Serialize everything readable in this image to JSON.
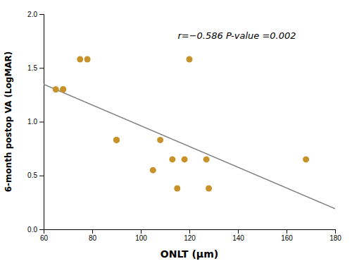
{
  "chart_data": {
    "type": "scatter",
    "xlabel": "ONLT (μm)",
    "ylabel": "6-month postop VA (LogMAR)",
    "annotation": "r=−0.586  P-value =0.002",
    "series": [
      {
        "type": "scatter",
        "color": "#C8922A",
        "x": [
          65,
          68,
          68,
          75,
          78,
          90,
          90,
          105,
          108,
          113,
          115,
          118,
          120,
          127,
          128,
          168
        ],
        "values": [
          1.3,
          1.3,
          1.3,
          1.58,
          1.58,
          0.83,
          0.83,
          0.55,
          0.83,
          0.65,
          0.38,
          0.65,
          1.58,
          0.65,
          0.38,
          0.65
        ]
      },
      {
        "type": "line",
        "color": "#808080",
        "x": [
          60,
          180
        ],
        "values": [
          1.3472,
          0.1906
        ]
      }
    ],
    "xlim": [
      60,
      180
    ],
    "ylim": [
      0.0,
      2.0
    ],
    "xticks": [
      60,
      80,
      100,
      120,
      140,
      160,
      180
    ],
    "yticks": [
      {
        "value": 0.0,
        "label": "0.0"
      },
      0.5,
      {
        "value": 1.0,
        "label": "1.0"
      },
      1.5,
      {
        "value": 2.0,
        "label": "2.0"
      }
    ],
    "grid": false
  }
}
